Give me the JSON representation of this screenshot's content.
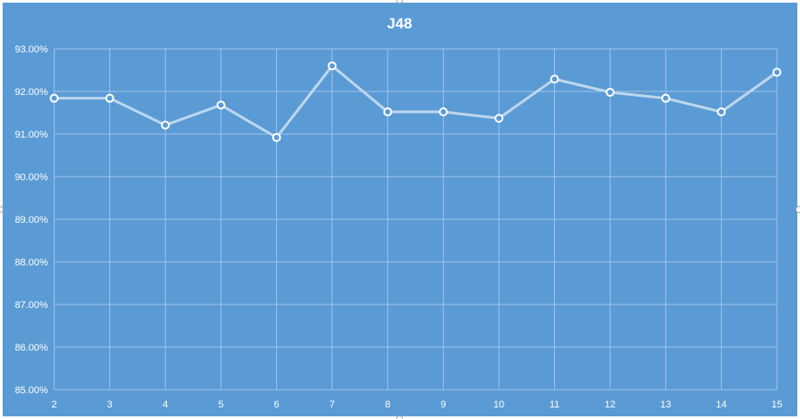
{
  "chart_data": {
    "type": "line",
    "title": "J48",
    "xlabel": "",
    "ylabel": "",
    "x": [
      2,
      3,
      4,
      5,
      6,
      7,
      8,
      9,
      10,
      11,
      12,
      13,
      14,
      15
    ],
    "x_tick_labels": [
      "2",
      "3",
      "4",
      "5",
      "6",
      "7",
      "8",
      "9",
      "10",
      "11",
      "12",
      "13",
      "14",
      "15"
    ],
    "ylim": [
      85,
      93
    ],
    "y_tick_labels": [
      "85.00%",
      "86.00%",
      "87.00%",
      "88.00%",
      "89.00%",
      "90.00%",
      "91.00%",
      "92.00%",
      "93.00%"
    ],
    "series": [
      {
        "values": [
          91.84,
          91.84,
          91.21,
          91.68,
          90.92,
          92.6,
          91.52,
          91.52,
          91.37,
          92.29,
          91.98,
          91.84,
          91.52,
          92.45
        ]
      }
    ],
    "grid": true,
    "legend": "none",
    "colors": {
      "background": "#5b9bd5",
      "line": "#bdd7ee",
      "marker_fill": "#5b9bd5",
      "marker_stroke": "#ffffff",
      "text": "#ffffff",
      "grid": "#9dc3e6"
    }
  }
}
